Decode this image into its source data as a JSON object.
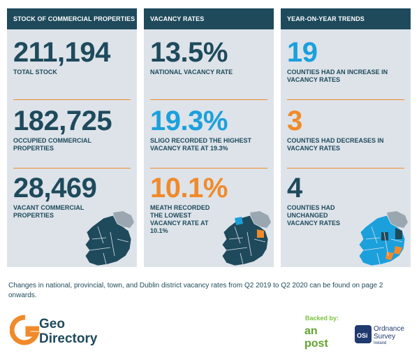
{
  "panels": [
    {
      "title": "STOCK OF COMMERCIAL PROPERTIES",
      "stats": [
        {
          "value": "211,194",
          "label": "TOTAL STOCK"
        },
        {
          "value": "182,725",
          "label": "OCCUPIED COMMERCIAL PROPERTIES"
        },
        {
          "value": "28,469",
          "label": "VACANT COMMERCIAL PROPERTIES"
        }
      ]
    },
    {
      "title": "VACANCY RATES",
      "stats": [
        {
          "value": "13.5%",
          "label": "NATIONAL VACANCY RATE"
        },
        {
          "value": "19.3%",
          "label": "SLIGO RECORDED THE HIGHEST VACANCY RATE AT 19.3%"
        },
        {
          "value": "10.1%",
          "label": "MEATH RECORDED THE LOWEST VACANCY RATE AT 10.1%"
        }
      ]
    },
    {
      "title": "YEAR-ON-YEAR TRENDS",
      "stats": [
        {
          "value": "19",
          "label": "COUNTIES HAD AN INCREASE IN VACANCY RATES"
        },
        {
          "value": "3",
          "label": "COUNTIES HAD DECREASES IN VACANCY RATES"
        },
        {
          "value": "4",
          "label": "COUNTIES HAD UNCHANGED VACANCY RATES"
        }
      ]
    }
  ],
  "footnote": "Changes in national, provincial, town, and Dublin district vacancy rates from Q2 2019 to Q2 2020 can be found on page 2 onwards.",
  "footer": {
    "logo_line1": "Geo",
    "logo_line2": "Directory",
    "backed_by": "Backed by:",
    "anpost_line1": "an",
    "anpost_line2": "post",
    "osi_badge": "OSi",
    "osi_line1": "Ordnance",
    "osi_line2": "Survey",
    "osi_line3": "Ireland"
  },
  "colors": {
    "navy": "#1e4a5c",
    "blue": "#1ba0dc",
    "orange": "#f08a2a",
    "panel": "#dde3e9",
    "green": "#7cc242"
  }
}
